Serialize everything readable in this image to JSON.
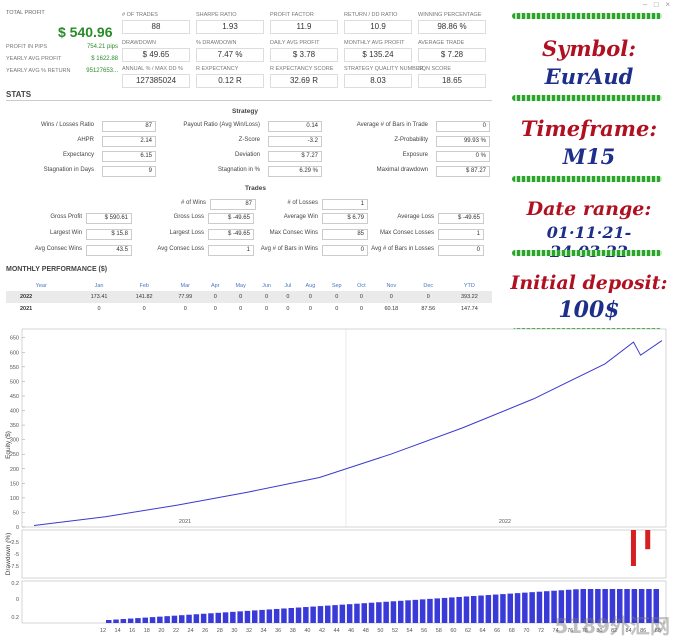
{
  "window_controls": [
    "–",
    "□",
    "×"
  ],
  "summary": {
    "total_profit_label": "TOTAL PROFIT",
    "total_profit": "$ 540.96",
    "profit_in_pips_label": "PROFIT IN PIPS",
    "profit_in_pips": "754.21 pips",
    "yearly_avg_profit_label": "YEARLY AVG PROFIT",
    "yearly_avg_profit": "$ 1622.88",
    "yearly_avg_return_label": "YEARLY AVG % RETURN",
    "yearly_avg_return": "95127653..."
  },
  "metrics": [
    {
      "label": "# OF TRADES",
      "value": "88"
    },
    {
      "label": "SHARPE RATIO",
      "value": "1.93"
    },
    {
      "label": "PROFIT FACTOR",
      "value": "11.9"
    },
    {
      "label": "RETURN / DD RATIO",
      "value": "10.9"
    },
    {
      "label": "WINNING PERCENTAGE",
      "value": "98.86 %"
    },
    {
      "label": "DRAWDOWN",
      "value": "$ 49.65"
    },
    {
      "label": "% DRAWDOWN",
      "value": "7.47 %"
    },
    {
      "label": "DAILY AVG PROFIT",
      "value": "$ 3.78"
    },
    {
      "label": "MONTHLY AVG PROFIT",
      "value": "$ 135.24"
    },
    {
      "label": "AVERAGE TRADE",
      "value": "$ 7.28"
    },
    {
      "label": "ANNUAL % / MAX DD %",
      "value": "127385024"
    },
    {
      "label": "R EXPECTANCY",
      "value": "0.12 R"
    },
    {
      "label": "R EXPECTANCY SCORE",
      "value": "32.69 R"
    },
    {
      "label": "STRATEGY QUALITY NUMBER",
      "value": "8.03"
    },
    {
      "label": "SQN SCORE",
      "value": "18.65"
    }
  ],
  "stats_title": "STATS",
  "strategy": {
    "title": "Strategy",
    "col1": [
      {
        "label": "Wins / Losses Ratio",
        "value": "87"
      },
      {
        "label": "AHPR",
        "value": "2.14"
      },
      {
        "label": "Expectancy",
        "value": "6.15"
      },
      {
        "label": "Stagnation in Days",
        "value": "9"
      }
    ],
    "col2": [
      {
        "label": "Payout Ratio (Avg Win/Loss)",
        "value": "0.14"
      },
      {
        "label": "Z-Score",
        "value": "-3.2"
      },
      {
        "label": "Deviation",
        "value": "$ 7.27"
      },
      {
        "label": "Stagnation in %",
        "value": "6.29 %"
      }
    ],
    "col3": [
      {
        "label": "Average # of Bars in Trade",
        "value": "0"
      },
      {
        "label": "Z-Probability",
        "value": "99.93 %"
      },
      {
        "label": "Exposure",
        "value": "0 %"
      },
      {
        "label": "Maximal drawdown",
        "value": "$ 87.27"
      }
    ]
  },
  "trades": {
    "title": "Trades",
    "wins_label": "# of Wins",
    "wins": "87",
    "losses_label": "# of Losses",
    "losses": "1",
    "col1": [
      {
        "label": "Gross Profit",
        "value": "$ 590.61"
      },
      {
        "label": "Largest Win",
        "value": "$ 15.8"
      },
      {
        "label": "Avg Consec Wins",
        "value": "43.5"
      }
    ],
    "col2": [
      {
        "label": "Gross Loss",
        "value": "$ -49.65"
      },
      {
        "label": "Largest Loss",
        "value": "$ -49.65"
      },
      {
        "label": "Avg Consec Loss",
        "value": "1"
      }
    ],
    "col3": [
      {
        "label": "Average Win",
        "value": "$ 6.79"
      },
      {
        "label": "Max Consec Wins",
        "value": "85"
      },
      {
        "label": "Avg # of Bars in Wins",
        "value": "0"
      }
    ],
    "col4": [
      {
        "label": "Average Loss",
        "value": "$ -49.65"
      },
      {
        "label": "Max Consec Losses",
        "value": "1"
      },
      {
        "label": "Avg # of Bars in Losses",
        "value": "0"
      }
    ]
  },
  "monthly": {
    "title": "MONTHLY PERFORMANCE ($)",
    "headers": [
      "Year",
      "Jan",
      "Feb",
      "Mar",
      "Apr",
      "May",
      "Jun",
      "Jul",
      "Aug",
      "Sep",
      "Oct",
      "Nov",
      "Dec",
      "YTD"
    ],
    "rows": [
      [
        "2022",
        "173.41",
        "141.82",
        "77.99",
        "0",
        "0",
        "0",
        "0",
        "0",
        "0",
        "0",
        "0",
        "0",
        "393.22"
      ],
      [
        "2021",
        "0",
        "0",
        "0",
        "0",
        "0",
        "0",
        "0",
        "0",
        "0",
        "0",
        "60.18",
        "87.56",
        "147.74"
      ]
    ]
  },
  "right_panel": {
    "symbol_label": "Symbol:",
    "symbol": "EurAud",
    "timeframe_label": "Timeframe:",
    "timeframe": "M15",
    "date_range_label": "Date range:",
    "date_range": "01·11·21-24·03·22",
    "deposit_label": "Initial deposit:",
    "deposit": "100$"
  },
  "chart_data": [
    {
      "type": "line",
      "ylabel": "Equity ($)",
      "ylim": [
        0,
        680
      ],
      "yticks": [
        0,
        50,
        100,
        150,
        200,
        250,
        300,
        350,
        400,
        450,
        500,
        550,
        600,
        650
      ],
      "xlabels": [
        "2021",
        "2022"
      ],
      "x": [
        0,
        10,
        20,
        30,
        40,
        50,
        60,
        70,
        80,
        84,
        85,
        88
      ],
      "y": [
        5,
        35,
        75,
        120,
        170,
        250,
        340,
        440,
        560,
        635,
        590,
        640
      ]
    },
    {
      "type": "bar",
      "ylabel": "Drawdown (%)",
      "ylim": [
        -10,
        0
      ],
      "yticks": [
        -2.5,
        -5.0,
        -7.5
      ],
      "values": [
        {
          "x": 84,
          "y": -7.5
        },
        {
          "x": 86,
          "y": -4.0
        }
      ]
    },
    {
      "type": "bar",
      "ylim": [
        0,
        0.2
      ],
      "ytick_labels": [
        "0.2",
        "0",
        "0.2"
      ],
      "xticks": [
        "12",
        "14",
        "16",
        "18",
        "20",
        "22",
        "24",
        "26",
        "28",
        "30",
        "32",
        "34",
        "36",
        "38",
        "40",
        "42",
        "44",
        "46",
        "48",
        "50",
        "52",
        "54",
        "56",
        "58",
        "60",
        "62",
        "64",
        "66",
        "68",
        "70",
        "72",
        "74",
        "76",
        "78",
        "80",
        "82",
        "84",
        "86",
        "88"
      ],
      "note": "rising blue bars"
    }
  ],
  "watermark": "5189外汇网"
}
